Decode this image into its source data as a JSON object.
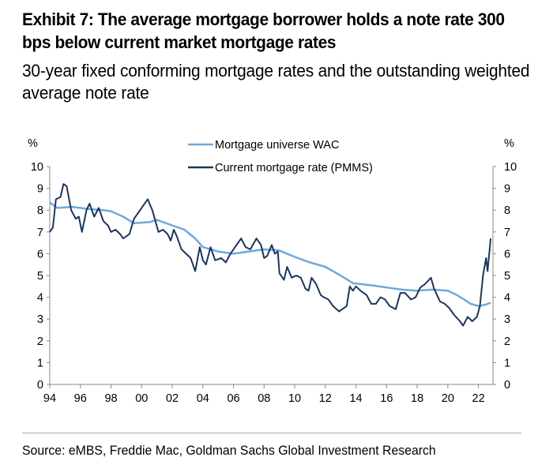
{
  "title": "Exhibit 7: The average mortgage borrower holds a note rate 300 bps below current market mortgage rates",
  "subtitle": "30-year fixed conforming mortgage rates and the outstanding weighted average note rate",
  "source": "Source: eMBS, Freddie Mac, Goldman Sachs Global Investment Research",
  "chart_data": {
    "type": "line",
    "ylabel_left": "%",
    "ylabel_right": "%",
    "ylim": [
      0,
      10
    ],
    "xlim": [
      1994,
      22.95
    ],
    "yticks": [
      "0",
      "1",
      "2",
      "3",
      "4",
      "5",
      "6",
      "7",
      "8",
      "9",
      "10"
    ],
    "xticks": [
      "94",
      "96",
      "98",
      "00",
      "02",
      "04",
      "06",
      "08",
      "10",
      "12",
      "14",
      "16",
      "18",
      "20",
      "22"
    ],
    "legend_placement": "top-center",
    "grid": false,
    "series": [
      {
        "name": "Mortgage universe WAC",
        "color": "#6fa8dc",
        "x": [
          1994.0,
          1994.5,
          1995.5,
          1996.5,
          1997.5,
          1998.0,
          1998.8,
          1999.5,
          2000.5,
          2001.0,
          2002.0,
          2002.8,
          2003.5,
          2004.0,
          2005.0,
          2006.0,
          2007.0,
          2008.0,
          2009.0,
          2010.0,
          2011.0,
          2012.0,
          2013.0,
          2013.8,
          2015.0,
          2016.0,
          2017.0,
          2018.0,
          2019.0,
          2020.0,
          2020.6,
          2021.5,
          2022.0,
          2022.4,
          2022.8
        ],
        "y": [
          8.35,
          8.1,
          8.15,
          8.05,
          8.0,
          7.95,
          7.7,
          7.4,
          7.45,
          7.55,
          7.3,
          7.1,
          6.7,
          6.3,
          6.1,
          6.0,
          6.1,
          6.2,
          6.15,
          5.85,
          5.6,
          5.4,
          5.0,
          4.65,
          4.55,
          4.45,
          4.35,
          4.3,
          4.35,
          4.3,
          4.1,
          3.7,
          3.6,
          3.65,
          3.75
        ]
      },
      {
        "name": "Current mortgage rate (PMMS)",
        "color": "#1b365d",
        "x": [
          1994.0,
          1994.2,
          1994.4,
          1994.7,
          1994.9,
          1995.1,
          1995.4,
          1995.7,
          1995.9,
          1996.1,
          1996.4,
          1996.6,
          1996.9,
          1997.2,
          1997.5,
          1997.8,
          1998.0,
          1998.3,
          1998.6,
          1998.8,
          1999.2,
          1999.5,
          1999.8,
          2000.2,
          2000.4,
          2000.7,
          2000.9,
          2001.1,
          2001.4,
          2001.7,
          2001.9,
          2002.1,
          2002.3,
          2002.6,
          2002.9,
          2003.2,
          2003.5,
          2003.8,
          2004.0,
          2004.2,
          2004.5,
          2004.8,
          2005.2,
          2005.5,
          2005.8,
          2006.1,
          2006.5,
          2006.8,
          2007.1,
          2007.5,
          2007.8,
          2008.0,
          2008.2,
          2008.5,
          2008.7,
          2008.9,
          2009.0,
          2009.3,
          2009.5,
          2009.8,
          2010.1,
          2010.4,
          2010.7,
          2010.9,
          2011.1,
          2011.4,
          2011.7,
          2011.9,
          2012.2,
          2012.5,
          2012.9,
          2013.2,
          2013.4,
          2013.6,
          2013.8,
          2014.0,
          2014.3,
          2014.7,
          2015.0,
          2015.3,
          2015.6,
          2015.9,
          2016.2,
          2016.6,
          2016.9,
          2017.2,
          2017.6,
          2017.9,
          2018.2,
          2018.5,
          2018.9,
          2019.1,
          2019.5,
          2019.8,
          2020.1,
          2020.4,
          2020.8,
          2021.0,
          2021.3,
          2021.6,
          2021.9,
          2022.1,
          2022.3,
          2022.5,
          2022.6,
          2022.8
        ],
        "y": [
          7.0,
          7.2,
          8.5,
          8.6,
          9.2,
          9.1,
          8.0,
          7.6,
          7.7,
          7.0,
          8.0,
          8.3,
          7.7,
          8.1,
          7.5,
          7.3,
          7.0,
          7.1,
          6.9,
          6.7,
          6.9,
          7.6,
          7.9,
          8.3,
          8.5,
          8.0,
          7.5,
          7.0,
          7.1,
          6.9,
          6.6,
          7.1,
          6.8,
          6.2,
          6.0,
          5.8,
          5.2,
          6.3,
          5.7,
          5.5,
          6.3,
          5.7,
          5.8,
          5.6,
          6.0,
          6.3,
          6.7,
          6.3,
          6.2,
          6.7,
          6.4,
          5.8,
          5.9,
          6.4,
          6.0,
          6.1,
          5.1,
          4.8,
          5.4,
          4.9,
          5.0,
          4.9,
          4.4,
          4.3,
          4.9,
          4.6,
          4.1,
          4.0,
          3.9,
          3.6,
          3.35,
          3.5,
          3.6,
          4.5,
          4.3,
          4.5,
          4.3,
          4.1,
          3.7,
          3.7,
          4.0,
          3.9,
          3.6,
          3.45,
          4.2,
          4.2,
          3.9,
          4.0,
          4.45,
          4.6,
          4.9,
          4.4,
          3.8,
          3.7,
          3.5,
          3.2,
          2.9,
          2.7,
          3.1,
          2.9,
          3.1,
          3.6,
          5.0,
          5.8,
          5.2,
          6.7
        ]
      }
    ]
  }
}
